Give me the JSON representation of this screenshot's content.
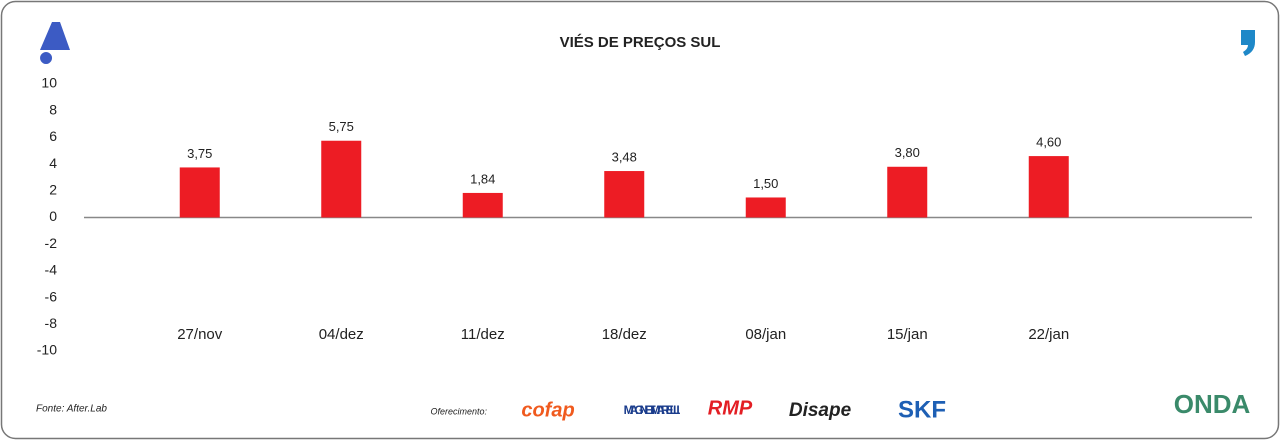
{
  "chart_data": {
    "type": "bar",
    "title": "VIÉS DE PREÇOS SUL",
    "categories": [
      "27/nov",
      "04/dez",
      "11/dez",
      "18/dez",
      "08/jan",
      "15/jan",
      "22/jan"
    ],
    "values": [
      3.75,
      5.75,
      1.84,
      3.48,
      1.5,
      3.8,
      4.6
    ],
    "value_labels": [
      "3,75",
      "5,75",
      "1,84",
      "3,48",
      "1,50",
      "3,80",
      "4,60"
    ],
    "color": "#ed1c24",
    "ylim": [
      -10,
      10
    ],
    "yticks": [
      -10,
      -8,
      -6,
      -4,
      -2,
      0,
      2,
      4,
      6,
      8,
      10
    ],
    "grid": false
  },
  "footer": {
    "source": "Fonte: After.Lab",
    "sponsor_label": "Oferecimento:",
    "sponsors": [
      "cofap",
      "MAGNETI MARELLI",
      "RMP",
      "Disape",
      "SKF"
    ],
    "brand": "ONDA"
  }
}
